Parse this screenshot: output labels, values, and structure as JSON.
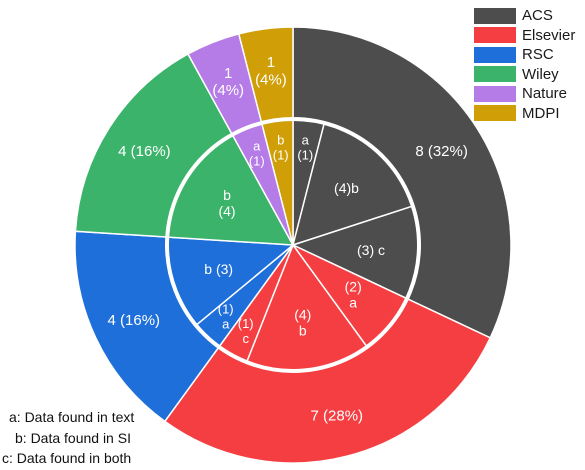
{
  "chart_data": {
    "type": "pie",
    "title": "",
    "outer": {
      "slices": [
        {
          "name": "ACS",
          "value": 8,
          "label": "8 (32%)",
          "color": "#4d4d4d"
        },
        {
          "name": "Elsevier",
          "value": 7,
          "label": "7 (28%)",
          "color": "#f43e41"
        },
        {
          "name": "RSC",
          "value": 4,
          "label": "4 (16%)",
          "color": "#1e6fd9"
        },
        {
          "name": "Wiley",
          "value": 4,
          "label": "4 (16%)",
          "color": "#3cb36a"
        },
        {
          "name": "Nature",
          "value": 1,
          "label": "1\n(4%)",
          "color": "#b57be6"
        },
        {
          "name": "MDPI",
          "value": 1,
          "label": "1\n(4%)",
          "color": "#d09e06"
        }
      ]
    },
    "inner": {
      "slices": [
        {
          "publisher": "ACS",
          "type": "a",
          "value": 1,
          "label": "a\n(1)"
        },
        {
          "publisher": "ACS",
          "type": "b",
          "value": 4,
          "label": "(4)b"
        },
        {
          "publisher": "ACS",
          "type": "c",
          "value": 3,
          "label": "(3) c"
        },
        {
          "publisher": "Elsevier",
          "type": "a",
          "value": 2,
          "label": "(2)\na"
        },
        {
          "publisher": "Elsevier",
          "type": "b",
          "value": 4,
          "label": "(4)\nb"
        },
        {
          "publisher": "Elsevier",
          "type": "c",
          "value": 1,
          "label": "(1)\nc"
        },
        {
          "publisher": "RSC",
          "type": "a",
          "value": 1,
          "label": "(1)\na"
        },
        {
          "publisher": "RSC",
          "type": "b",
          "value": 3,
          "label": "b (3)"
        },
        {
          "publisher": "Wiley",
          "type": "b",
          "value": 4,
          "label": "b\n(4)"
        },
        {
          "publisher": "Nature",
          "type": "a",
          "value": 1,
          "label": "a\n(1)"
        },
        {
          "publisher": "MDPI",
          "type": "b",
          "value": 1,
          "label": "b\n(1)"
        }
      ]
    },
    "legend": {
      "placement": "top-right",
      "entries": [
        "ACS",
        "Elsevier",
        "RSC",
        "Wiley",
        "Nature",
        "MDPI"
      ]
    },
    "notes": [
      "a: Data found in text",
      "b: Data found in SI",
      "c: Data found in both"
    ]
  }
}
